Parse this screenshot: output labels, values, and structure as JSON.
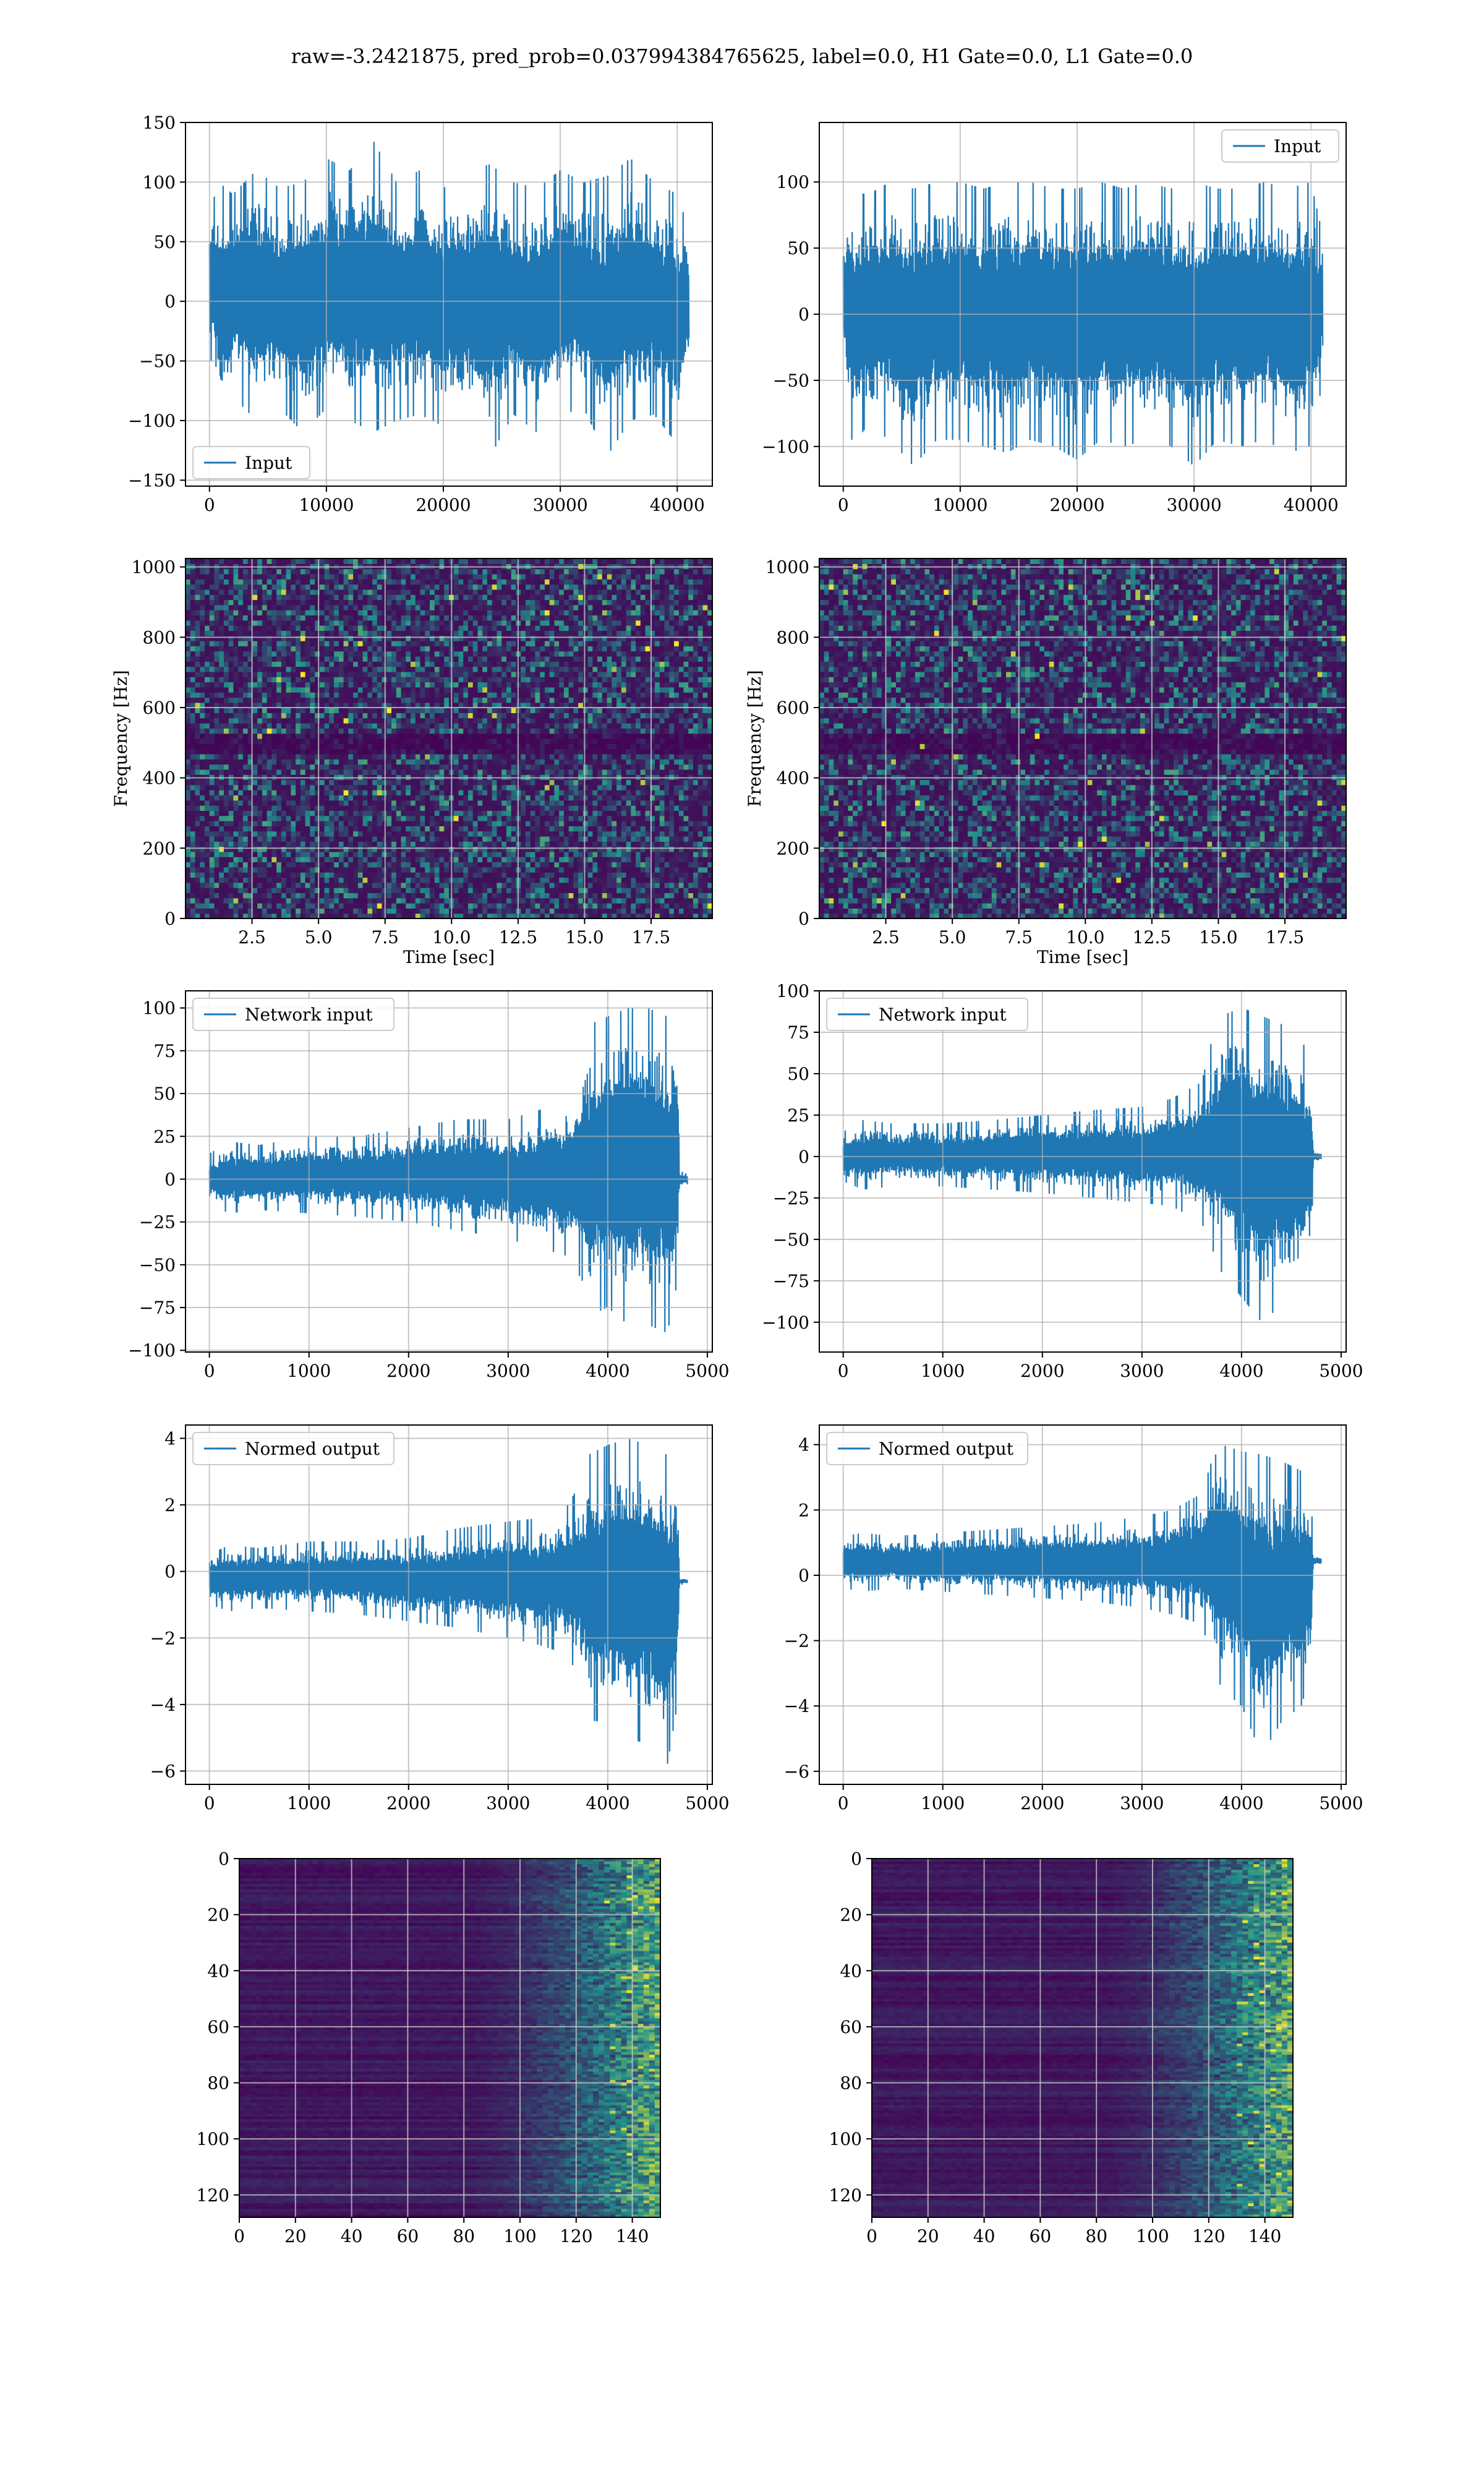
{
  "figure": {
    "suptitle": "raw=-3.2421875, pred_prob=0.037994384765625, label=0.0, H1 Gate=0.0, L1 Gate=0.0"
  },
  "colors": {
    "series": "#1f77b4",
    "grid": "#b0b0b0",
    "viridis_low": "#440154",
    "viridis_mid": "#21918c",
    "viridis_high": "#fde725"
  },
  "chart_data": [
    {
      "id": "h1-input",
      "type": "line",
      "series": [
        {
          "name": "Input",
          "envelope": [
            [
              0,
              -40,
              75
            ],
            [
              800,
              -95,
              100
            ],
            [
              2000,
              -80,
              90
            ],
            [
              4000,
              -100,
              110
            ],
            [
              6000,
              -90,
              95
            ],
            [
              8000,
              -110,
              100
            ],
            [
              10000,
              -90,
              120
            ],
            [
              12000,
              -100,
              110
            ],
            [
              14000,
              -110,
              135
            ],
            [
              16000,
              -100,
              100
            ],
            [
              18000,
              -95,
              110
            ],
            [
              20000,
              -105,
              95
            ],
            [
              22000,
              -100,
              110
            ],
            [
              24000,
              -130,
              115
            ],
            [
              26000,
              -95,
              100
            ],
            [
              28000,
              -110,
              95
            ],
            [
              30000,
              -95,
              110
            ],
            [
              32000,
              -90,
              100
            ],
            [
              34000,
              -130,
              105
            ],
            [
              36000,
              -100,
              120
            ],
            [
              38000,
              -95,
              100
            ],
            [
              40000,
              -120,
              90
            ],
            [
              41000,
              -60,
              60
            ]
          ]
        }
      ],
      "legend": "lower-left",
      "xlim": [
        -2050,
        43000
      ],
      "ylim": [
        -155,
        150
      ],
      "xticks": [
        0,
        10000,
        20000,
        30000,
        40000
      ],
      "xtick_labels": [
        "0",
        "10000",
        "20000",
        "30000",
        "40000"
      ],
      "yticks": [
        -150,
        -100,
        -50,
        0,
        50,
        100,
        150
      ],
      "ytick_labels": [
        "−150",
        "−100",
        "−50",
        "0",
        "50",
        "100",
        "150"
      ],
      "xlabel": "",
      "ylabel": "",
      "grid": true
    },
    {
      "id": "l1-input",
      "type": "line",
      "series": [
        {
          "name": "Input",
          "envelope": [
            [
              0,
              -40,
              70
            ],
            [
              800,
              -100,
              95
            ],
            [
              2000,
              -85,
              90
            ],
            [
              4000,
              -95,
              100
            ],
            [
              6000,
              -115,
              95
            ],
            [
              8000,
              -95,
              100
            ],
            [
              10000,
              -95,
              100
            ],
            [
              12000,
              -100,
              95
            ],
            [
              14000,
              -105,
              100
            ],
            [
              16000,
              -95,
              100
            ],
            [
              18000,
              -100,
              95
            ],
            [
              20000,
              -110,
              95
            ],
            [
              22000,
              -95,
              100
            ],
            [
              24000,
              -100,
              95
            ],
            [
              26000,
              -95,
              100
            ],
            [
              28000,
              -100,
              95
            ],
            [
              30000,
              -115,
              100
            ],
            [
              32000,
              -95,
              95
            ],
            [
              34000,
              -100,
              95
            ],
            [
              36000,
              -95,
              100
            ],
            [
              38000,
              -105,
              95
            ],
            [
              40000,
              -100,
              100
            ],
            [
              41000,
              -50,
              60
            ]
          ]
        }
      ],
      "legend": "upper-right",
      "xlim": [
        -2050,
        43000
      ],
      "ylim": [
        -130,
        145
      ],
      "xticks": [
        0,
        10000,
        20000,
        30000,
        40000
      ],
      "xtick_labels": [
        "0",
        "10000",
        "20000",
        "30000",
        "40000"
      ],
      "yticks": [
        -100,
        -50,
        0,
        50,
        100
      ],
      "ytick_labels": [
        "−100",
        "−50",
        "0",
        "50",
        "100"
      ],
      "xlabel": "",
      "ylabel": "",
      "grid": true
    },
    {
      "id": "h1-spectrogram",
      "type": "heatmap",
      "xlim": [
        0,
        19.8
      ],
      "ylim": [
        0,
        1024
      ],
      "xticks": [
        2.5,
        5.0,
        7.5,
        10.0,
        12.5,
        15.0,
        17.5
      ],
      "xtick_labels": [
        "2.5",
        "5.0",
        "7.5",
        "10.0",
        "12.5",
        "15.0",
        "17.5"
      ],
      "yticks": [
        0,
        200,
        400,
        600,
        800,
        1000
      ],
      "ytick_labels": [
        "0",
        "200",
        "400",
        "600",
        "800",
        "1000"
      ],
      "xlabel": "Time [sec]",
      "ylabel": "Frequency [Hz]",
      "grid": true,
      "dark_band_hz": [
        470,
        520
      ]
    },
    {
      "id": "l1-spectrogram",
      "type": "heatmap",
      "xlim": [
        0,
        19.8
      ],
      "ylim": [
        0,
        1024
      ],
      "xticks": [
        2.5,
        5.0,
        7.5,
        10.0,
        12.5,
        15.0,
        17.5
      ],
      "xtick_labels": [
        "2.5",
        "5.0",
        "7.5",
        "10.0",
        "12.5",
        "15.0",
        "17.5"
      ],
      "yticks": [
        0,
        200,
        400,
        600,
        800,
        1000
      ],
      "ytick_labels": [
        "0",
        "200",
        "400",
        "600",
        "800",
        "1000"
      ],
      "xlabel": "Time [sec]",
      "ylabel": "Frequency [Hz]",
      "grid": true,
      "dark_band_hz": [
        470,
        520
      ]
    },
    {
      "id": "h1-network-input",
      "type": "line",
      "series": [
        {
          "name": "Network input",
          "envelope": [
            [
              0,
              -15,
              15
            ],
            [
              200,
              -20,
              22
            ],
            [
              500,
              -18,
              20
            ],
            [
              1000,
              -20,
              25
            ],
            [
              1500,
              -22,
              25
            ],
            [
              2000,
              -25,
              30
            ],
            [
              2500,
              -30,
              35
            ],
            [
              3000,
              -35,
              35
            ],
            [
              3300,
              -40,
              40
            ],
            [
              3600,
              -45,
              50
            ],
            [
              3750,
              -60,
              70
            ],
            [
              3800,
              -80,
              90
            ],
            [
              4000,
              -75,
              95
            ],
            [
              4200,
              -85,
              100
            ],
            [
              4400,
              -85,
              100
            ],
            [
              4600,
              -90,
              95
            ],
            [
              4700,
              -60,
              80
            ],
            [
              4720,
              -5,
              5
            ],
            [
              4800,
              -3,
              3
            ]
          ]
        }
      ],
      "legend": "upper-left",
      "xlim": [
        -240,
        5050
      ],
      "ylim": [
        -101,
        110
      ],
      "xticks": [
        0,
        1000,
        2000,
        3000,
        4000,
        5000
      ],
      "xtick_labels": [
        "0",
        "1000",
        "2000",
        "3000",
        "4000",
        "5000"
      ],
      "yticks": [
        -100,
        -75,
        -50,
        -25,
        0,
        25,
        50,
        75,
        100
      ],
      "ytick_labels": [
        "−100",
        "−75",
        "−50",
        "−25",
        "0",
        "25",
        "50",
        "75",
        "100"
      ],
      "xlabel": "",
      "ylabel": "",
      "grid": true
    },
    {
      "id": "l1-network-input",
      "type": "line",
      "series": [
        {
          "name": "Network input",
          "envelope": [
            [
              0,
              -15,
              15
            ],
            [
              200,
              -20,
              22
            ],
            [
              500,
              -18,
              20
            ],
            [
              1000,
              -18,
              20
            ],
            [
              1500,
              -20,
              22
            ],
            [
              2000,
              -22,
              25
            ],
            [
              2500,
              -25,
              28
            ],
            [
              3000,
              -28,
              30
            ],
            [
              3300,
              -30,
              35
            ],
            [
              3600,
              -40,
              45
            ],
            [
              3700,
              -55,
              70
            ],
            [
              3800,
              -70,
              85
            ],
            [
              4000,
              -85,
              90
            ],
            [
              4200,
              -100,
              85
            ],
            [
              4400,
              -90,
              80
            ],
            [
              4600,
              -85,
              70
            ],
            [
              4700,
              -60,
              60
            ],
            [
              4720,
              -4,
              4
            ],
            [
              4800,
              -3,
              3
            ]
          ]
        }
      ],
      "legend": "upper-left",
      "xlim": [
        -240,
        5050
      ],
      "ylim": [
        -118,
        100
      ],
      "xticks": [
        0,
        1000,
        2000,
        3000,
        4000,
        5000
      ],
      "xtick_labels": [
        "0",
        "1000",
        "2000",
        "3000",
        "4000",
        "5000"
      ],
      "yticks": [
        -100,
        -75,
        -50,
        -25,
        0,
        25,
        50,
        75,
        100
      ],
      "ytick_labels": [
        "−100",
        "−75",
        "−50",
        "−25",
        "0",
        "25",
        "50",
        "75",
        "100"
      ],
      "xlabel": "",
      "ylabel": "",
      "grid": true
    },
    {
      "id": "h1-normed-output",
      "type": "line",
      "series": [
        {
          "name": "Normed output",
          "envelope": [
            [
              0,
              -1.0,
              0.5
            ],
            [
              200,
              -1.2,
              0.8
            ],
            [
              500,
              -1.1,
              0.7
            ],
            [
              1000,
              -1.2,
              0.9
            ],
            [
              1500,
              -1.3,
              0.9
            ],
            [
              2000,
              -1.5,
              1.0
            ],
            [
              2500,
              -1.7,
              1.3
            ],
            [
              3000,
              -2.0,
              1.5
            ],
            [
              3300,
              -2.2,
              1.6
            ],
            [
              3600,
              -2.5,
              2.0
            ],
            [
              3750,
              -3.5,
              2.8
            ],
            [
              3800,
              -4.5,
              3.5
            ],
            [
              4000,
              -4.5,
              3.8
            ],
            [
              4200,
              -5.0,
              4.0
            ],
            [
              4400,
              -5.2,
              3.8
            ],
            [
              4600,
              -5.8,
              3.5
            ],
            [
              4700,
              -4.0,
              3.0
            ],
            [
              4720,
              -0.4,
              -0.2
            ],
            [
              4800,
              -0.4,
              -0.2
            ]
          ]
        }
      ],
      "legend": "upper-left",
      "xlim": [
        -240,
        5050
      ],
      "ylim": [
        -6.4,
        4.4
      ],
      "xticks": [
        0,
        1000,
        2000,
        3000,
        4000,
        5000
      ],
      "xtick_labels": [
        "0",
        "1000",
        "2000",
        "3000",
        "4000",
        "5000"
      ],
      "yticks": [
        -6,
        -4,
        -2,
        0,
        2,
        4
      ],
      "ytick_labels": [
        "−6",
        "−4",
        "−2",
        "0",
        "2",
        "4"
      ],
      "xlabel": "",
      "ylabel": "",
      "grid": true
    },
    {
      "id": "l1-normed-output",
      "type": "line",
      "series": [
        {
          "name": "Normed output",
          "envelope": [
            [
              0,
              -0.4,
              1.2
            ],
            [
              200,
              -0.5,
              1.3
            ],
            [
              500,
              -0.4,
              1.2
            ],
            [
              1000,
              -0.5,
              1.3
            ],
            [
              1500,
              -0.6,
              1.4
            ],
            [
              2000,
              -0.7,
              1.5
            ],
            [
              2500,
              -0.8,
              1.6
            ],
            [
              3000,
              -1.0,
              1.8
            ],
            [
              3300,
              -1.2,
              2.0
            ],
            [
              3600,
              -1.5,
              2.5
            ],
            [
              3700,
              -2.5,
              3.5
            ],
            [
              3800,
              -3.5,
              4.0
            ],
            [
              4000,
              -4.0,
              3.8
            ],
            [
              4200,
              -5.5,
              3.7
            ],
            [
              4400,
              -4.5,
              3.5
            ],
            [
              4600,
              -4.0,
              3.2
            ],
            [
              4700,
              -3.0,
              2.5
            ],
            [
              4720,
              0.3,
              0.6
            ],
            [
              4800,
              0.3,
              0.6
            ]
          ]
        }
      ],
      "legend": "upper-left",
      "xlim": [
        -240,
        5050
      ],
      "ylim": [
        -6.4,
        4.6
      ],
      "xticks": [
        0,
        1000,
        2000,
        3000,
        4000,
        5000
      ],
      "xtick_labels": [
        "0",
        "1000",
        "2000",
        "3000",
        "4000",
        "5000"
      ],
      "yticks": [
        -6,
        -4,
        -2,
        0,
        2,
        4
      ],
      "ytick_labels": [
        "−6",
        "−4",
        "−2",
        "0",
        "2",
        "4"
      ],
      "xlabel": "",
      "ylabel": "",
      "grid": true
    },
    {
      "id": "h1-feature-map",
      "type": "heatmap",
      "xlim": [
        0,
        150
      ],
      "ylim": [
        128,
        0
      ],
      "y_inverted": true,
      "xticks": [
        0,
        20,
        40,
        60,
        80,
        100,
        120,
        140
      ],
      "xtick_labels": [
        "0",
        "20",
        "40",
        "60",
        "80",
        "100",
        "120",
        "140"
      ],
      "yticks": [
        0,
        20,
        40,
        60,
        80,
        100,
        120
      ],
      "ytick_labels": [
        "0",
        "20",
        "40",
        "60",
        "80",
        "100",
        "120"
      ],
      "xlabel": "",
      "ylabel": "",
      "grid": true
    },
    {
      "id": "l1-feature-map",
      "type": "heatmap",
      "xlim": [
        0,
        150
      ],
      "ylim": [
        128,
        0
      ],
      "y_inverted": true,
      "xticks": [
        0,
        20,
        40,
        60,
        80,
        100,
        120,
        140
      ],
      "xtick_labels": [
        "0",
        "20",
        "40",
        "60",
        "80",
        "100",
        "120",
        "140"
      ],
      "yticks": [
        0,
        20,
        40,
        60,
        80,
        100,
        120
      ],
      "ytick_labels": [
        "0",
        "20",
        "40",
        "60",
        "80",
        "100",
        "120"
      ],
      "xlabel": "",
      "ylabel": "",
      "grid": true
    }
  ]
}
